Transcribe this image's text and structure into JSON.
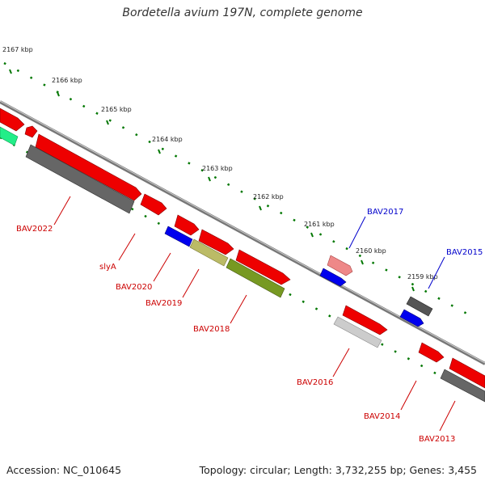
{
  "title": "Bordetella avium 197N, complete genome",
  "footer": {
    "accession": "Accession: NC_010645",
    "summary": "Topology: circular; Length: 3,732,255 bp; Genes: 3,455"
  },
  "colors": {
    "forward_gene": "#ee0000",
    "reverse_gene": "#666666",
    "blue_gene": "#0000ee",
    "tick": "#007700",
    "backbone": "#777777",
    "label_red": "#cc0000",
    "label_blue": "#0000cc"
  },
  "ticks": [
    "2167 kbp",
    "2166 kbp",
    "2165 kbp",
    "2164 kbp",
    "2163 kbp",
    "2162 kbp",
    "2161 kbp",
    "2160 kbp",
    "2159 kbp"
  ],
  "gene_labels": [
    "BAV2022",
    "slyA",
    "BAV2020",
    "BAV2019",
    "BAV2018",
    "BAV2017",
    "BAV2016",
    "BAV2015",
    "BAV2014",
    "BAV2013"
  ]
}
